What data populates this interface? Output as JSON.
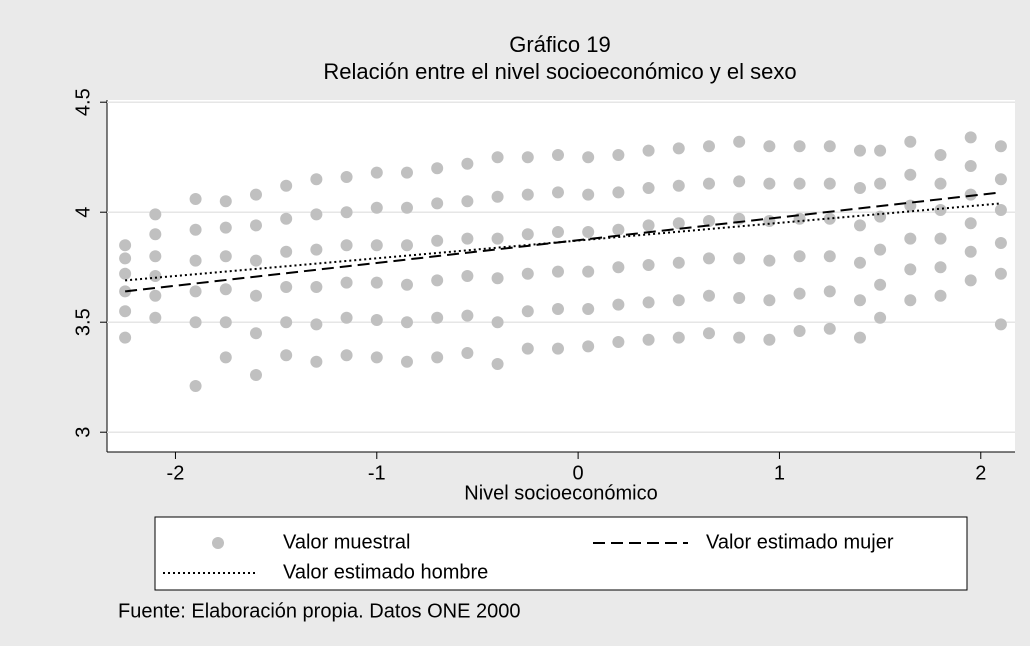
{
  "chart_data": {
    "type": "scatter",
    "title": "Gráfico 19",
    "subtitle": "Relación entre el nivel socioeconómico y el sexo",
    "xlabel": "Nivel socioeconómico",
    "note": "Fuente: Elaboración propia. Datos ONE 2000",
    "xlim": [
      -2.34,
      2.17
    ],
    "xticks": [
      -2,
      -1,
      0,
      1,
      2
    ],
    "ylim": [
      2.91,
      4.51
    ],
    "yticks": [
      3,
      3.5,
      4,
      4.5
    ],
    "grid": true,
    "series": [
      {
        "name": "Valor muestral",
        "color": "#c0c0c0",
        "mark": "point",
        "x": [
          -2.25,
          -2.25,
          -2.25,
          -2.25,
          -2.25,
          -2.25,
          -2.1,
          -2.1,
          -2.1,
          -2.1,
          -2.1,
          -2.1,
          -1.9,
          -1.9,
          -1.9,
          -1.9,
          -1.9,
          -1.9,
          -1.75,
          -1.75,
          -1.75,
          -1.75,
          -1.75,
          -1.75,
          -1.6,
          -1.6,
          -1.6,
          -1.6,
          -1.6,
          -1.6,
          -1.45,
          -1.45,
          -1.45,
          -1.45,
          -1.45,
          -1.45,
          -1.3,
          -1.3,
          -1.3,
          -1.3,
          -1.3,
          -1.3,
          -1.15,
          -1.15,
          -1.15,
          -1.15,
          -1.15,
          -1.15,
          -1.0,
          -1.0,
          -1.0,
          -1.0,
          -1.0,
          -1.0,
          -0.85,
          -0.85,
          -0.85,
          -0.85,
          -0.85,
          -0.85,
          -0.7,
          -0.7,
          -0.7,
          -0.7,
          -0.7,
          -0.7,
          -0.55,
          -0.55,
          -0.55,
          -0.55,
          -0.55,
          -0.55,
          -0.4,
          -0.4,
          -0.4,
          -0.4,
          -0.4,
          -0.4,
          -0.25,
          -0.25,
          -0.25,
          -0.25,
          -0.25,
          -0.25,
          -0.1,
          -0.1,
          -0.1,
          -0.1,
          -0.1,
          -0.1,
          0.05,
          0.05,
          0.05,
          0.05,
          0.05,
          0.05,
          0.2,
          0.2,
          0.2,
          0.2,
          0.2,
          0.2,
          0.35,
          0.35,
          0.35,
          0.35,
          0.35,
          0.35,
          0.5,
          0.5,
          0.5,
          0.5,
          0.5,
          0.5,
          0.65,
          0.65,
          0.65,
          0.65,
          0.65,
          0.65,
          0.8,
          0.8,
          0.8,
          0.8,
          0.8,
          0.8,
          0.95,
          0.95,
          0.95,
          0.95,
          0.95,
          0.95,
          1.1,
          1.1,
          1.1,
          1.1,
          1.1,
          1.1,
          1.25,
          1.25,
          1.25,
          1.25,
          1.25,
          1.25,
          1.4,
          1.4,
          1.4,
          1.4,
          1.4,
          1.4,
          1.5,
          1.5,
          1.5,
          1.5,
          1.5,
          1.5,
          1.65,
          1.65,
          1.65,
          1.65,
          1.65,
          1.65,
          1.8,
          1.8,
          1.8,
          1.8,
          1.8,
          1.8,
          1.95,
          1.95,
          1.95,
          1.95,
          1.95,
          1.95,
          2.1,
          2.1,
          2.1,
          2.1,
          2.1,
          2.1
        ],
        "y": [
          3.43,
          3.55,
          3.64,
          3.72,
          3.79,
          3.85,
          3.52,
          3.62,
          3.71,
          3.8,
          3.9,
          3.99,
          3.21,
          3.5,
          3.64,
          3.78,
          3.92,
          4.06,
          3.34,
          3.5,
          3.65,
          3.8,
          3.93,
          4.05,
          3.26,
          3.45,
          3.62,
          3.78,
          3.94,
          4.08,
          3.35,
          3.5,
          3.66,
          3.82,
          3.97,
          4.12,
          3.32,
          3.49,
          3.66,
          3.83,
          3.99,
          4.15,
          3.35,
          3.52,
          3.68,
          3.85,
          4.0,
          4.16,
          3.34,
          3.51,
          3.68,
          3.85,
          4.02,
          4.18,
          3.32,
          3.5,
          3.67,
          3.85,
          4.02,
          4.18,
          3.34,
          3.52,
          3.69,
          3.87,
          4.04,
          4.2,
          3.36,
          3.53,
          3.71,
          3.88,
          4.05,
          4.22,
          3.31,
          3.5,
          3.7,
          3.88,
          4.07,
          4.25,
          3.38,
          3.55,
          3.72,
          3.9,
          4.08,
          4.25,
          3.38,
          3.56,
          3.73,
          3.91,
          4.09,
          4.26,
          3.39,
          3.56,
          3.73,
          3.91,
          4.08,
          4.25,
          3.41,
          3.58,
          3.75,
          3.92,
          4.09,
          4.26,
          3.42,
          3.59,
          3.76,
          3.94,
          4.11,
          4.28,
          3.43,
          3.6,
          3.77,
          3.95,
          4.12,
          4.29,
          3.45,
          3.62,
          3.79,
          3.96,
          4.13,
          4.3,
          3.43,
          3.61,
          3.79,
          3.97,
          4.14,
          4.32,
          3.42,
          3.6,
          3.78,
          3.96,
          4.13,
          4.3,
          3.46,
          3.63,
          3.8,
          3.97,
          4.13,
          4.3,
          3.47,
          3.64,
          3.8,
          3.97,
          4.13,
          4.3,
          3.43,
          3.6,
          3.77,
          3.94,
          4.11,
          4.28,
          3.52,
          3.67,
          3.83,
          3.98,
          4.13,
          4.28,
          3.6,
          3.74,
          3.88,
          4.03,
          4.17,
          4.32,
          3.62,
          3.75,
          3.88,
          4.01,
          4.13,
          4.26,
          3.69,
          3.82,
          3.95,
          4.08,
          4.21,
          4.34,
          3.49,
          3.72,
          3.86,
          4.01,
          4.15,
          4.3
        ]
      },
      {
        "name": "Valor estimado mujer",
        "color": "#000000",
        "mark": "dashed",
        "x": [
          -2.25,
          2.1
        ],
        "y": [
          3.64,
          4.09
        ]
      },
      {
        "name": "Valor estimado hombre",
        "color": "#000000",
        "mark": "dotted",
        "x": [
          -2.25,
          2.1
        ],
        "y": [
          3.69,
          4.04
        ]
      }
    ]
  }
}
